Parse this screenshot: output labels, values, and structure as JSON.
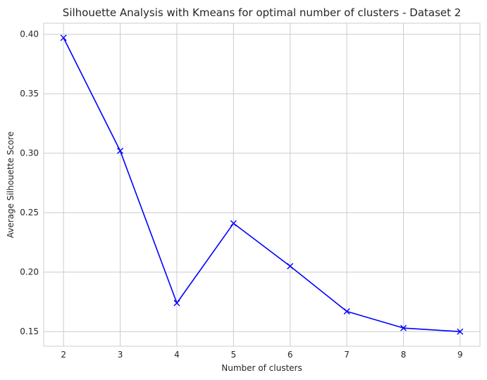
{
  "chart_data": {
    "type": "line",
    "title": "Silhouette Analysis with Kmeans for optimal number of clusters - Dataset 2",
    "xlabel": "Number of clusters",
    "ylabel": "Average Silhouette Score",
    "x": [
      2,
      3,
      4,
      5,
      6,
      7,
      8,
      9
    ],
    "y": [
      0.397,
      0.302,
      0.174,
      0.241,
      0.205,
      0.167,
      0.153,
      0.15
    ],
    "x_ticks": [
      "2",
      "3",
      "4",
      "5",
      "6",
      "7",
      "8",
      "9"
    ],
    "y_ticks": [
      "0.15",
      "0.20",
      "0.25",
      "0.30",
      "0.35",
      "0.40"
    ],
    "xlim": [
      1.65,
      9.35
    ],
    "ylim": [
      0.1377,
      0.4093
    ],
    "grid": true,
    "marker": "x",
    "colors": {
      "line": "#0000ff",
      "grid": "#cccccc",
      "spine": "#cccccc",
      "text": "#262626"
    }
  }
}
